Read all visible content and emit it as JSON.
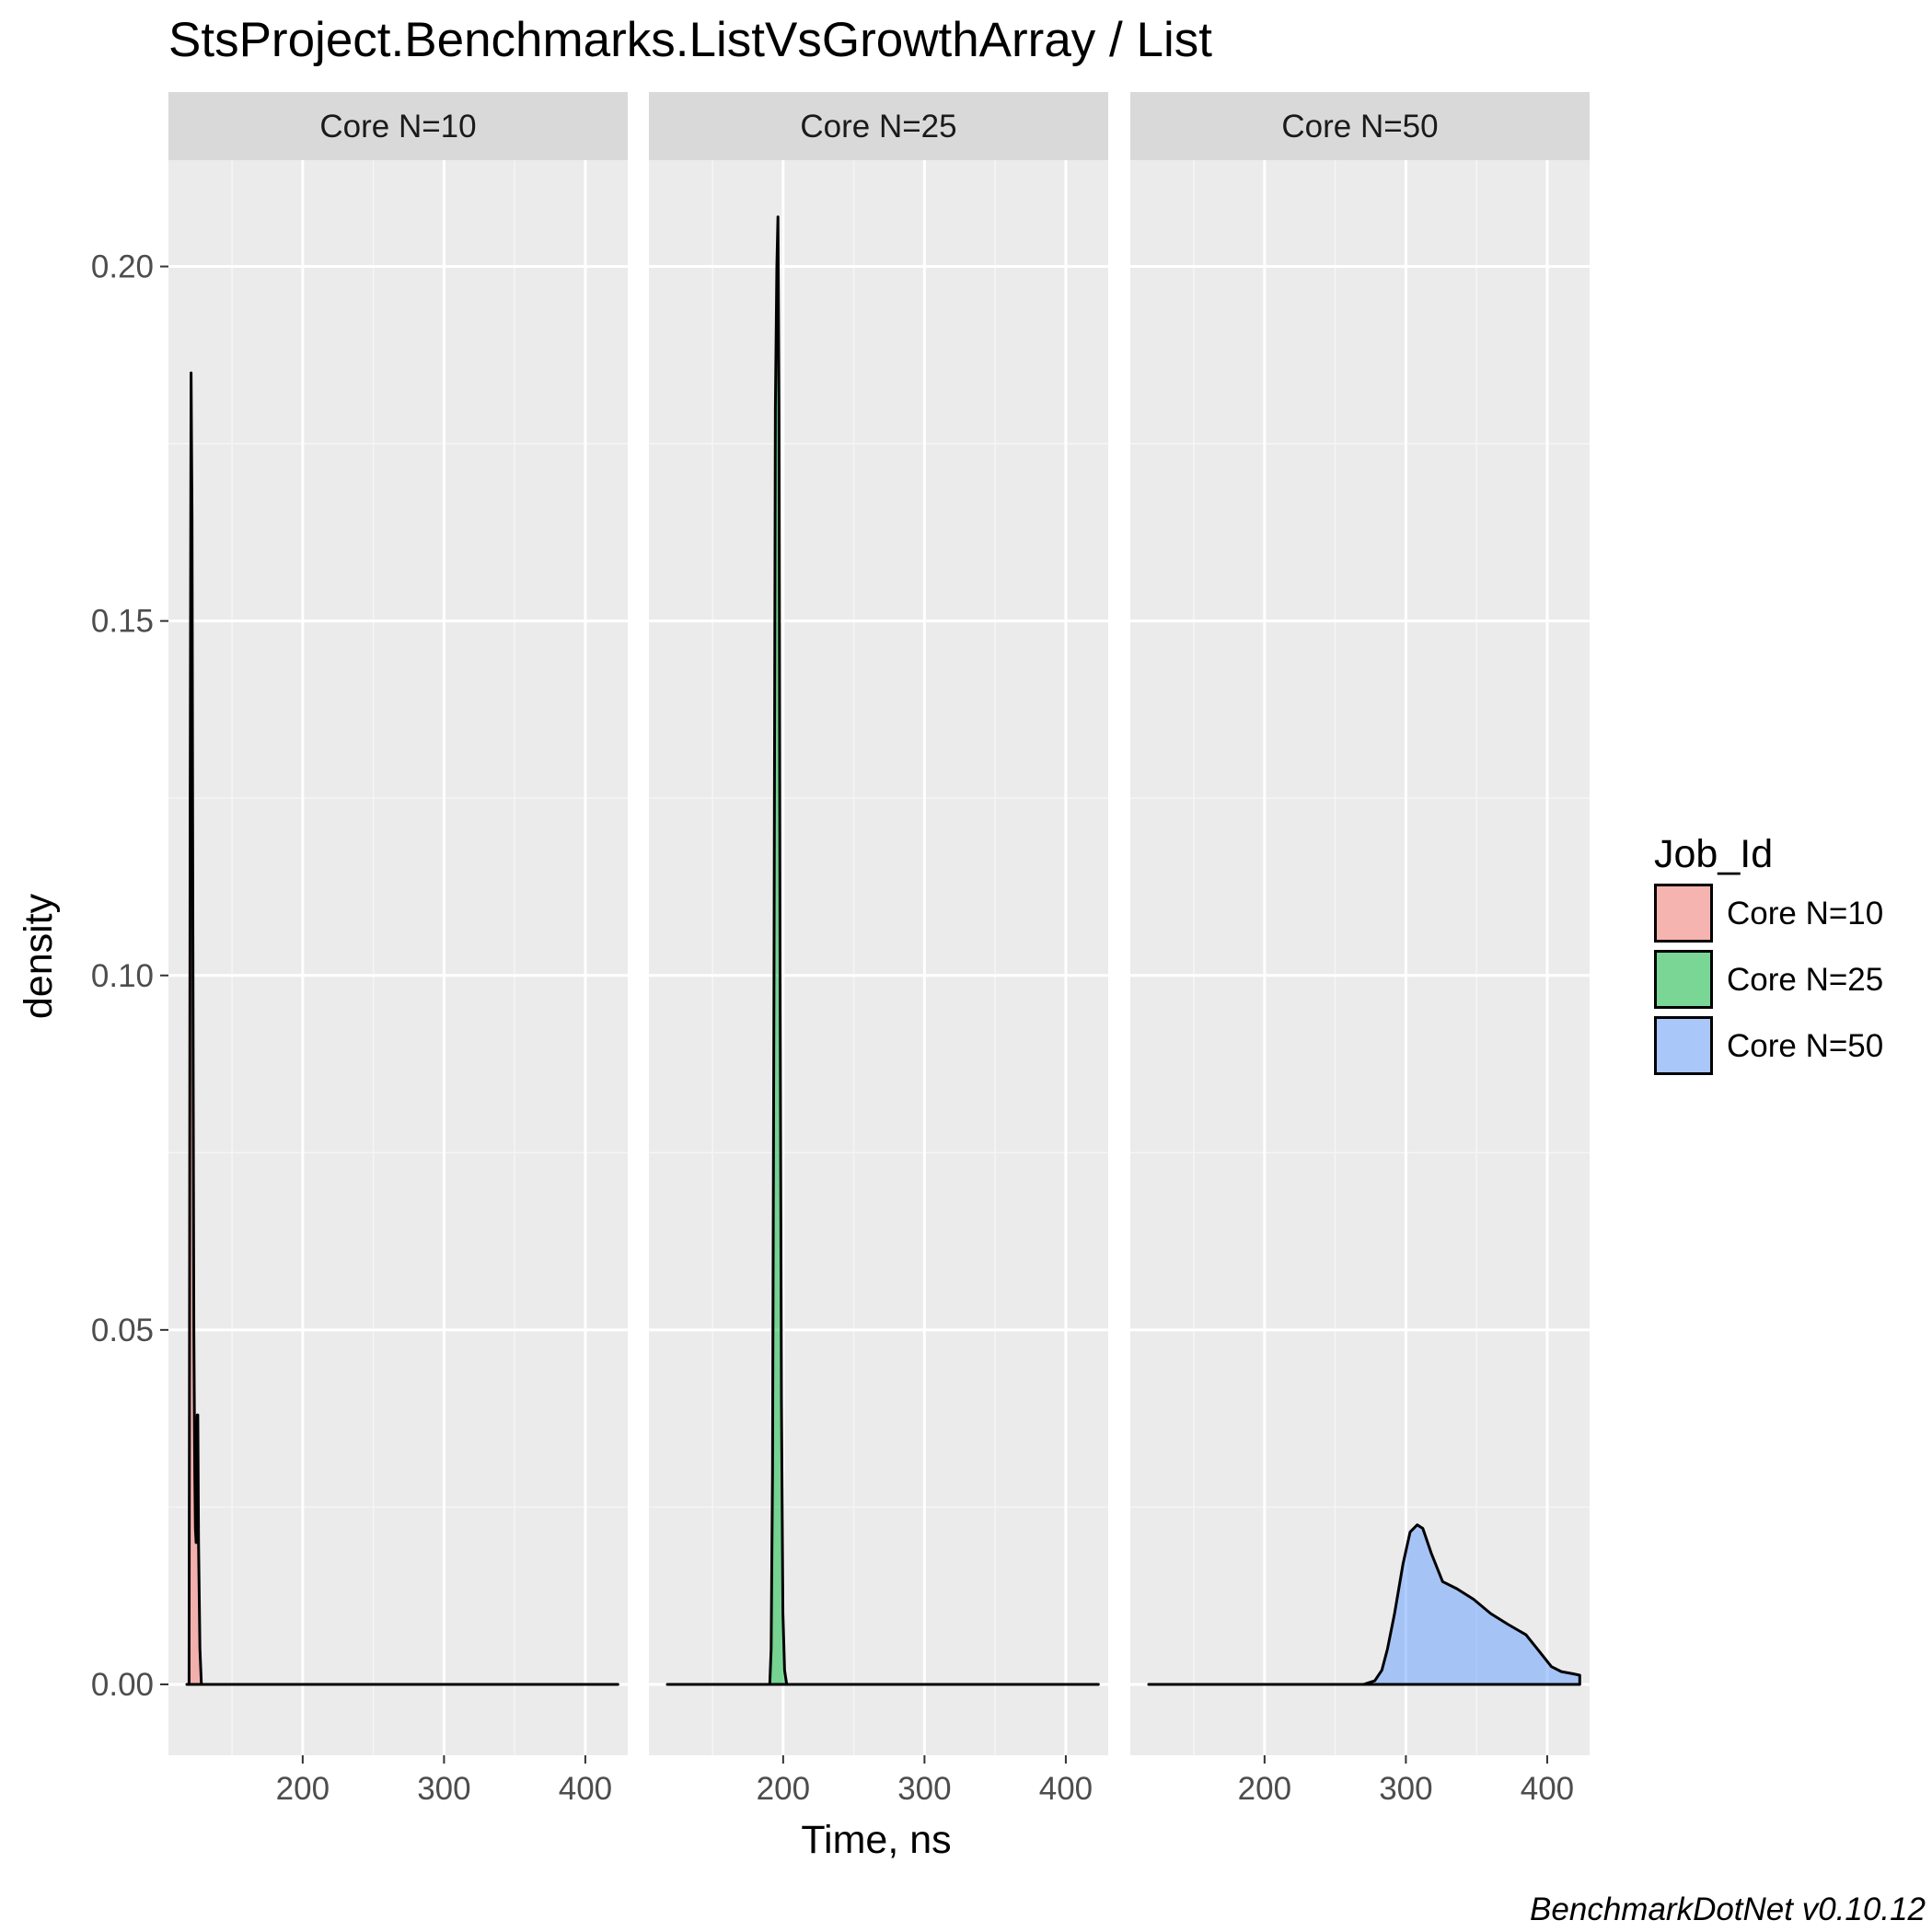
{
  "chart_data": {
    "type": "area",
    "title": "StsProject.Benchmarks.ListVsGrowthArray / List",
    "xlabel": "Time, ns",
    "ylabel": "density",
    "caption": "BenchmarkDotNet v0.10.12",
    "xlim": [
      105,
      430
    ],
    "ylim": [
      -0.01,
      0.215
    ],
    "x_ticks": [
      200,
      300,
      400
    ],
    "y_ticks": [
      0.0,
      0.05,
      0.1,
      0.15,
      0.2
    ],
    "x_tick_labels": [
      "200",
      "300",
      "400"
    ],
    "y_tick_labels": [
      "0.00",
      "0.05",
      "0.10",
      "0.15",
      "0.20"
    ],
    "grid": true,
    "legend": {
      "title": "Job_Id",
      "position": "right",
      "entries": [
        "Core N=10",
        "Core N=25",
        "Core N=50"
      ]
    },
    "panels": [
      {
        "label": "Core N=10",
        "fill": "#F8766D",
        "x": [
          118,
          119.6,
          120.0,
          120.4,
          121.0,
          121.7,
          122.5,
          123.0,
          123.6,
          124.1,
          124.6,
          125.0,
          125.4,
          125.8,
          126.3,
          127.3,
          128.3,
          130,
          150,
          200,
          250,
          300,
          350,
          400,
          423
        ],
        "y": [
          0.0,
          0.0,
          0.06,
          0.125,
          0.185,
          0.165,
          0.085,
          0.05,
          0.03,
          0.022,
          0.02,
          0.025,
          0.038,
          0.038,
          0.02,
          0.005,
          0.0,
          0.0,
          0.0,
          0.0,
          0.0,
          0.0,
          0.0,
          0.0,
          0.0
        ]
      },
      {
        "label": "Core N=25",
        "fill": "#00BA38",
        "x": [
          118,
          150,
          185,
          190.5,
          191.5,
          192.5,
          193.5,
          194.5,
          195.5,
          196.3,
          197.0,
          197.8,
          198.8,
          199.8,
          201.0,
          202.5,
          205,
          250,
          300,
          350,
          400,
          423
        ],
        "y": [
          0.0,
          0.0,
          0.0,
          0.0,
          0.005,
          0.03,
          0.1,
          0.18,
          0.2,
          0.207,
          0.18,
          0.1,
          0.04,
          0.01,
          0.002,
          0.0,
          0.0,
          0.0,
          0.0,
          0.0,
          0.0,
          0.0
        ]
      },
      {
        "label": "Core N=50",
        "fill": "#619CFF",
        "x": [
          118,
          150,
          200,
          250,
          270,
          278,
          283,
          287,
          292,
          298,
          303,
          308,
          312,
          318,
          326,
          336,
          348,
          360,
          372,
          385,
          395,
          403,
          410,
          418,
          423
        ],
        "y": [
          0.0,
          0.0,
          0.0,
          0.0,
          0.0,
          0.0005,
          0.002,
          0.005,
          0.01,
          0.017,
          0.0215,
          0.0225,
          0.022,
          0.0185,
          0.0145,
          0.0135,
          0.012,
          0.01,
          0.0085,
          0.007,
          0.0045,
          0.0025,
          0.0018,
          0.0015,
          0.0013
        ]
      }
    ]
  }
}
